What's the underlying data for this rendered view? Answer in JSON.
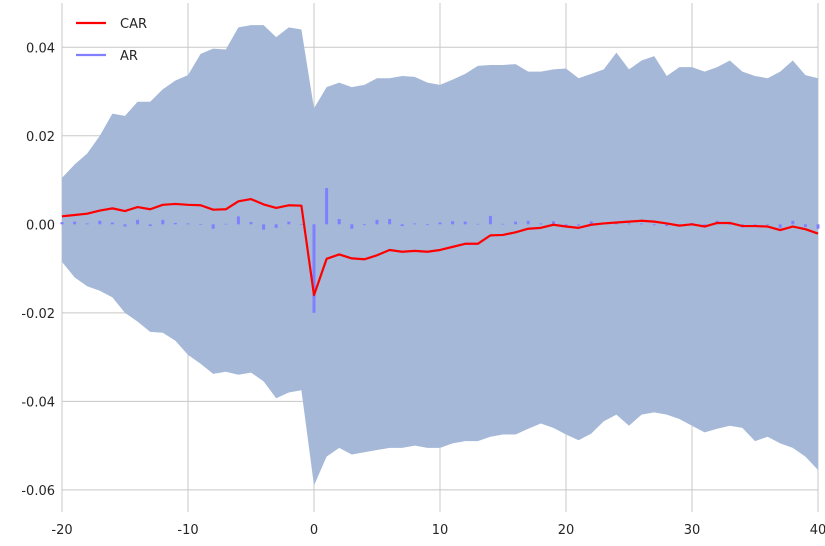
{
  "chart_data": {
    "type": "line",
    "title": "",
    "xlabel": "",
    "ylabel": "",
    "xlim": [
      -20,
      40
    ],
    "ylim": [
      -0.065,
      0.05
    ],
    "grid": true,
    "legend_placement": "top-left",
    "x_ticks": [
      -20,
      -10,
      0,
      10,
      20,
      30,
      40
    ],
    "x_tick_labels": [
      "-20",
      "-10",
      "0",
      "10",
      "20",
      "30",
      "40"
    ],
    "y_ticks": [
      0.04,
      0.02,
      0.0,
      -0.02,
      -0.04,
      -0.06
    ],
    "y_tick_labels": [
      "0.04",
      "0.02",
      "0.00",
      "-0.02",
      "-0.04",
      "-0.06"
    ],
    "colors": {
      "car": "#ff0000",
      "ar": "#8080ff",
      "band": "#a5b8d8",
      "grid": "#c8c8c8"
    },
    "series": [
      {
        "name": "CAR",
        "kind": "line",
        "x": [
          -20,
          -19,
          -18,
          -17,
          -16,
          -15,
          -14,
          -13,
          -12,
          -11,
          -10,
          -9,
          -8,
          -7,
          -6,
          -5,
          -4,
          -3,
          -2,
          -1,
          0,
          1,
          2,
          3,
          4,
          5,
          6,
          7,
          8,
          9,
          10,
          11,
          12,
          13,
          14,
          15,
          16,
          17,
          18,
          19,
          20,
          21,
          22,
          23,
          24,
          25,
          26,
          27,
          28,
          29,
          30,
          31,
          32,
          33,
          34,
          35,
          36,
          37,
          38,
          39,
          40
        ],
        "y": [
          0.0018,
          0.0021,
          0.0024,
          0.0031,
          0.0036,
          0.003,
          0.0039,
          0.0034,
          0.0044,
          0.0046,
          0.0044,
          0.0043,
          0.0033,
          0.0034,
          0.0052,
          0.0057,
          0.0045,
          0.0037,
          0.0043,
          0.0042,
          -0.016,
          -0.0078,
          -0.0068,
          -0.0077,
          -0.0079,
          -0.007,
          -0.0058,
          -0.0062,
          -0.006,
          -0.0062,
          -0.0058,
          -0.0051,
          -0.0044,
          -0.0044,
          -0.0025,
          -0.0024,
          -0.0018,
          -0.001,
          -0.0008,
          -0.0001,
          -0.0005,
          -0.0008,
          -0.0001,
          0.0002,
          0.0004,
          0.0006,
          0.0008,
          0.0006,
          0.0002,
          -0.0003,
          0.0,
          -0.0005,
          0.0003,
          0.0003,
          -0.0004,
          -0.0004,
          -0.0005,
          -0.0013,
          -0.0005,
          -0.0011,
          -0.0021
        ]
      },
      {
        "name": "AR",
        "kind": "bar",
        "x": [
          -20,
          -19,
          -18,
          -17,
          -16,
          -15,
          -14,
          -13,
          -12,
          -11,
          -10,
          -9,
          -8,
          -7,
          -6,
          -5,
          -4,
          -3,
          -2,
          -1,
          0,
          1,
          2,
          3,
          4,
          5,
          6,
          7,
          8,
          9,
          10,
          11,
          12,
          13,
          14,
          15,
          16,
          17,
          18,
          19,
          20,
          21,
          22,
          23,
          24,
          25,
          26,
          27,
          28,
          29,
          30,
          31,
          32,
          33,
          34,
          35,
          36,
          37,
          38,
          39,
          40
        ],
        "y": [
          0.0005,
          0.0006,
          0.0002,
          0.0008,
          0.0004,
          -0.0005,
          0.001,
          -0.0004,
          0.001,
          0.0003,
          0.0002,
          -0.0001,
          -0.001,
          0.0001,
          0.0018,
          0.0005,
          -0.0012,
          -0.0008,
          0.0006,
          -0.0001,
          -0.02,
          0.0082,
          0.0012,
          -0.001,
          -0.0002,
          0.001,
          0.0012,
          -0.0004,
          0.0002,
          -0.0002,
          0.0004,
          0.0007,
          0.0006,
          0.0001,
          0.0019,
          0.0001,
          0.0006,
          0.0008,
          0.0002,
          0.0007,
          -0.0004,
          -0.0003,
          0.0007,
          0.0003,
          0.0002,
          0.0002,
          0.0002,
          -0.0002,
          -0.0004,
          -0.0005,
          0.0003,
          -0.0005,
          0.0008,
          0.0,
          -0.0007,
          0.0,
          -0.0001,
          -0.0008,
          0.0008,
          -0.0006,
          -0.001
        ]
      }
    ],
    "band": {
      "x": [
        -20,
        -19,
        -18,
        -17,
        -16,
        -15,
        -14,
        -13,
        -12,
        -11,
        -10,
        -9,
        -8,
        -7,
        -6,
        -5,
        -4,
        -3,
        -2,
        -1,
        0,
        1,
        2,
        3,
        4,
        5,
        6,
        7,
        8,
        9,
        10,
        11,
        12,
        13,
        14,
        15,
        16,
        17,
        18,
        19,
        20,
        21,
        22,
        23,
        24,
        25,
        26,
        27,
        28,
        29,
        30,
        31,
        32,
        33,
        34,
        35,
        36,
        37,
        38,
        39,
        40
      ],
      "upper": [
        0.0105,
        0.0135,
        0.016,
        0.02,
        0.025,
        0.0245,
        0.0277,
        0.0277,
        0.0305,
        0.0325,
        0.0337,
        0.0385,
        0.0397,
        0.0395,
        0.0445,
        0.045,
        0.045,
        0.0423,
        0.0445,
        0.044,
        0.0262,
        0.031,
        0.032,
        0.031,
        0.0315,
        0.033,
        0.033,
        0.0335,
        0.0333,
        0.032,
        0.0315,
        0.0327,
        0.034,
        0.0358,
        0.036,
        0.036,
        0.0362,
        0.0345,
        0.0345,
        0.035,
        0.0352,
        0.033,
        0.034,
        0.035,
        0.0388,
        0.035,
        0.037,
        0.038,
        0.0335,
        0.0355,
        0.0355,
        0.0345,
        0.0355,
        0.037,
        0.0345,
        0.0335,
        0.033,
        0.0345,
        0.037,
        0.0337,
        0.033
      ],
      "lower": [
        -0.0085,
        -0.012,
        -0.014,
        -0.015,
        -0.0165,
        -0.02,
        -0.022,
        -0.0243,
        -0.0245,
        -0.0263,
        -0.0295,
        -0.0315,
        -0.0338,
        -0.0333,
        -0.034,
        -0.0335,
        -0.0355,
        -0.0393,
        -0.038,
        -0.0375,
        -0.059,
        -0.0525,
        -0.0505,
        -0.052,
        -0.0515,
        -0.051,
        -0.0505,
        -0.0505,
        -0.05,
        -0.0505,
        -0.0505,
        -0.0495,
        -0.049,
        -0.049,
        -0.048,
        -0.0475,
        -0.0475,
        -0.0462,
        -0.045,
        -0.046,
        -0.0475,
        -0.0488,
        -0.0473,
        -0.0445,
        -0.043,
        -0.0455,
        -0.043,
        -0.0425,
        -0.043,
        -0.044,
        -0.0455,
        -0.047,
        -0.0462,
        -0.0455,
        -0.046,
        -0.049,
        -0.048,
        -0.0495,
        -0.0505,
        -0.0525,
        -0.0555
      ]
    }
  }
}
